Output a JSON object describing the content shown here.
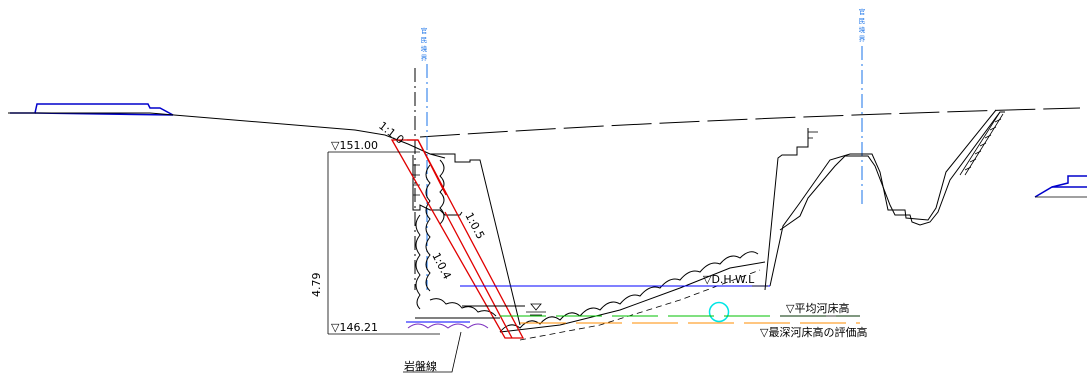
{
  "labels": {
    "top_elevation": "▽151.00",
    "bottom_elevation": "▽146.21",
    "height_dimension": "4.79",
    "design_high_water": "▽D.H.W.L",
    "average_riverbed": "▽平均河床高",
    "deepest_riverbed": "▽最深河床高の評価高",
    "bedrock_line": "岩盤線",
    "slope_1_1": "1:1.0",
    "slope_0_5": "1:0.5",
    "slope_0_4": "1:0.4",
    "boundary_left": [
      "官",
      "民",
      "境",
      "界"
    ],
    "boundary_right": [
      "官",
      "民",
      "境",
      "界"
    ]
  },
  "colors": {
    "line": "#000000",
    "water_level": "#0000ff",
    "boundary": "#1a73e8",
    "proposed_wall": "#e00000",
    "average_bed": "#00c000",
    "deepest_bed": "#ff8c00",
    "road": "#0000cc",
    "marker_circle": "#00e5e5",
    "bedrock": "#7b2fbf"
  }
}
